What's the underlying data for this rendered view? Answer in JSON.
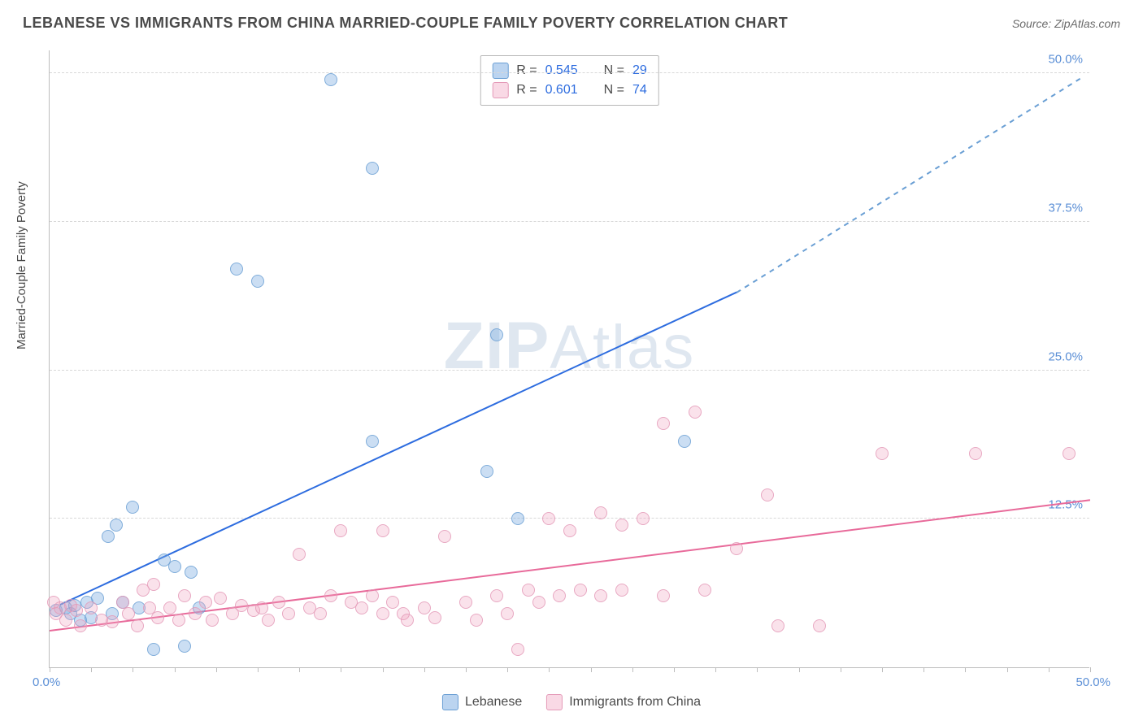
{
  "header": {
    "title": "LEBANESE VS IMMIGRANTS FROM CHINA MARRIED-COUPLE FAMILY POVERTY CORRELATION CHART",
    "source": "Source: ZipAtlas.com"
  },
  "chart": {
    "type": "scatter",
    "y_axis_label": "Married-Couple Family Poverty",
    "xlim": [
      0,
      50
    ],
    "ylim": [
      0,
      52
    ],
    "x_origin_label": "0.0%",
    "x_max_label": "50.0%",
    "y_ticks": [
      {
        "value": 12.5,
        "label": "12.5%"
      },
      {
        "value": 25.0,
        "label": "25.0%"
      },
      {
        "value": 37.5,
        "label": "37.5%"
      },
      {
        "value": 50.0,
        "label": "50.0%"
      }
    ],
    "x_tick_positions": [
      0,
      2,
      4,
      6,
      8,
      10,
      12,
      14,
      16,
      18,
      20,
      22,
      24,
      26,
      28,
      30,
      32,
      34,
      36,
      38,
      40,
      42,
      44,
      46,
      48,
      50
    ],
    "background_color": "#ffffff",
    "grid_color": "#d8d8d8",
    "axis_color": "#bdbdbd",
    "tick_label_color": "#5b8fd6",
    "watermark": "ZIPAtlas",
    "legend_top": {
      "rows": [
        {
          "swatch": "blue",
          "r_label": "R =",
          "r_val": "0.545",
          "n_label": "N =",
          "n_val": "29"
        },
        {
          "swatch": "pink",
          "r_label": "R =",
          "r_val": "0.601",
          "n_label": "N =",
          "n_val": "74"
        }
      ]
    },
    "legend_bottom": [
      {
        "swatch": "blue",
        "label": "Lebanese"
      },
      {
        "swatch": "pink",
        "label": "Immigrants from China"
      }
    ],
    "series": [
      {
        "name": "Lebanese",
        "color_fill": "rgba(120,170,225,0.45)",
        "color_stroke": "#6a9fd4",
        "marker_size": 16,
        "trend_line": {
          "color": "#2d6cdf",
          "x1": 0.5,
          "y1": 5.2,
          "x2": 33,
          "y2": 31.5,
          "dash_extend_to": {
            "x": 49.5,
            "y": 49.5
          }
        },
        "points": [
          {
            "x": 0.3,
            "y": 4.8
          },
          {
            "x": 0.8,
            "y": 5.0
          },
          {
            "x": 1.0,
            "y": 4.5
          },
          {
            "x": 1.2,
            "y": 5.2
          },
          {
            "x": 1.5,
            "y": 4.0
          },
          {
            "x": 1.8,
            "y": 5.5
          },
          {
            "x": 2.0,
            "y": 4.2
          },
          {
            "x": 2.3,
            "y": 5.8
          },
          {
            "x": 2.8,
            "y": 11.0
          },
          {
            "x": 3.0,
            "y": 4.5
          },
          {
            "x": 3.2,
            "y": 12.0
          },
          {
            "x": 3.5,
            "y": 5.5
          },
          {
            "x": 4.0,
            "y": 13.5
          },
          {
            "x": 4.3,
            "y": 5.0
          },
          {
            "x": 5.0,
            "y": 1.5
          },
          {
            "x": 5.5,
            "y": 9.0
          },
          {
            "x": 6.0,
            "y": 8.5
          },
          {
            "x": 6.5,
            "y": 1.8
          },
          {
            "x": 6.8,
            "y": 8.0
          },
          {
            "x": 7.2,
            "y": 5.0
          },
          {
            "x": 9.0,
            "y": 33.5
          },
          {
            "x": 10.0,
            "y": 32.5
          },
          {
            "x": 13.5,
            "y": 49.5
          },
          {
            "x": 15.5,
            "y": 42.0
          },
          {
            "x": 15.5,
            "y": 19.0
          },
          {
            "x": 21.5,
            "y": 28.0
          },
          {
            "x": 21.0,
            "y": 16.5
          },
          {
            "x": 22.5,
            "y": 12.5
          },
          {
            "x": 30.5,
            "y": 19.0
          }
        ]
      },
      {
        "name": "Immigrants from China",
        "color_fill": "rgba(240,160,190,0.35)",
        "color_stroke": "#e49ab8",
        "marker_size": 16,
        "trend_line": {
          "color": "#e86a9a",
          "x1": 0,
          "y1": 3.0,
          "x2": 50,
          "y2": 14.0
        },
        "points": [
          {
            "x": 0.2,
            "y": 5.5
          },
          {
            "x": 0.3,
            "y": 4.5
          },
          {
            "x": 0.5,
            "y": 5.0
          },
          {
            "x": 0.8,
            "y": 4.0
          },
          {
            "x": 1.0,
            "y": 5.2
          },
          {
            "x": 1.3,
            "y": 4.8
          },
          {
            "x": 1.5,
            "y": 3.5
          },
          {
            "x": 2.0,
            "y": 5.0
          },
          {
            "x": 2.5,
            "y": 4.0
          },
          {
            "x": 3.0,
            "y": 3.8
          },
          {
            "x": 3.5,
            "y": 5.5
          },
          {
            "x": 3.8,
            "y": 4.5
          },
          {
            "x": 4.2,
            "y": 3.5
          },
          {
            "x": 4.8,
            "y": 5.0
          },
          {
            "x": 4.5,
            "y": 6.5
          },
          {
            "x": 5.2,
            "y": 4.2
          },
          {
            "x": 5.0,
            "y": 7.0
          },
          {
            "x": 5.8,
            "y": 5.0
          },
          {
            "x": 6.2,
            "y": 4.0
          },
          {
            "x": 6.5,
            "y": 6.0
          },
          {
            "x": 7.0,
            "y": 4.5
          },
          {
            "x": 7.5,
            "y": 5.5
          },
          {
            "x": 7.8,
            "y": 4.0
          },
          {
            "x": 8.2,
            "y": 5.8
          },
          {
            "x": 8.8,
            "y": 4.5
          },
          {
            "x": 9.2,
            "y": 5.2
          },
          {
            "x": 9.8,
            "y": 4.8
          },
          {
            "x": 10.2,
            "y": 5.0
          },
          {
            "x": 10.5,
            "y": 4.0
          },
          {
            "x": 11.0,
            "y": 5.5
          },
          {
            "x": 11.5,
            "y": 4.5
          },
          {
            "x": 12.0,
            "y": 9.5
          },
          {
            "x": 12.5,
            "y": 5.0
          },
          {
            "x": 13.0,
            "y": 4.5
          },
          {
            "x": 13.5,
            "y": 6.0
          },
          {
            "x": 14.5,
            "y": 5.5
          },
          {
            "x": 14.0,
            "y": 11.5
          },
          {
            "x": 15.0,
            "y": 5.0
          },
          {
            "x": 15.5,
            "y": 6.0
          },
          {
            "x": 16.0,
            "y": 4.5
          },
          {
            "x": 16.0,
            "y": 11.5
          },
          {
            "x": 16.5,
            "y": 5.5
          },
          {
            "x": 17.0,
            "y": 4.5
          },
          {
            "x": 17.2,
            "y": 4.0
          },
          {
            "x": 18.0,
            "y": 5.0
          },
          {
            "x": 18.5,
            "y": 4.2
          },
          {
            "x": 19.0,
            "y": 11.0
          },
          {
            "x": 20.0,
            "y": 5.5
          },
          {
            "x": 20.5,
            "y": 4.0
          },
          {
            "x": 21.5,
            "y": 6.0
          },
          {
            "x": 22.0,
            "y": 4.5
          },
          {
            "x": 22.5,
            "y": 1.5
          },
          {
            "x": 23.0,
            "y": 6.5
          },
          {
            "x": 23.5,
            "y": 5.5
          },
          {
            "x": 24.5,
            "y": 6.0
          },
          {
            "x": 24.0,
            "y": 12.5
          },
          {
            "x": 25.0,
            "y": 11.5
          },
          {
            "x": 25.5,
            "y": 6.5
          },
          {
            "x": 26.5,
            "y": 6.0
          },
          {
            "x": 26.5,
            "y": 13.0
          },
          {
            "x": 27.5,
            "y": 12.0
          },
          {
            "x": 27.5,
            "y": 6.5
          },
          {
            "x": 28.5,
            "y": 12.5
          },
          {
            "x": 29.5,
            "y": 20.5
          },
          {
            "x": 29.5,
            "y": 6.0
          },
          {
            "x": 31.0,
            "y": 21.5
          },
          {
            "x": 31.5,
            "y": 6.5
          },
          {
            "x": 33.0,
            "y": 10.0
          },
          {
            "x": 34.5,
            "y": 14.5
          },
          {
            "x": 35.0,
            "y": 3.5
          },
          {
            "x": 37.0,
            "y": 3.5
          },
          {
            "x": 40.0,
            "y": 18.0
          },
          {
            "x": 44.5,
            "y": 18.0
          },
          {
            "x": 49.0,
            "y": 18.0
          }
        ]
      }
    ]
  }
}
